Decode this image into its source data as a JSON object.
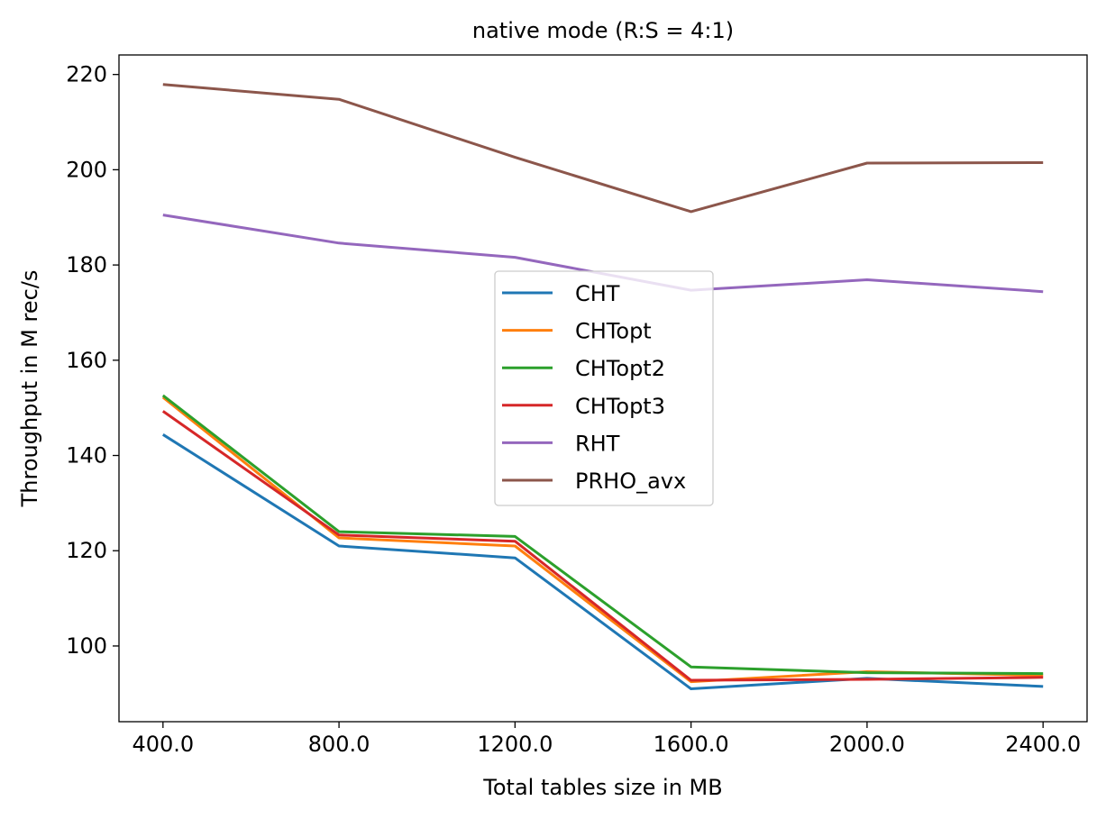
{
  "chart_data": {
    "type": "line",
    "title": "native mode (R:S = 4:1)",
    "xlabel": "Total tables size in MB",
    "ylabel": "Throughput in M rec/s",
    "x": [
      400.0,
      800.0,
      1200.0,
      1600.0,
      2000.0,
      2400.0
    ],
    "x_tick_labels": [
      "400.0",
      "800.0",
      "1200.0",
      "1600.0",
      "2000.0",
      "2400.0"
    ],
    "xlim": [
      300,
      2500
    ],
    "ylim": [
      84.1,
      224.1
    ],
    "y_ticks": [
      100,
      120,
      140,
      160,
      180,
      200,
      220
    ],
    "grid": false,
    "legend_position": "center",
    "series": [
      {
        "name": "CHT",
        "color": "#1f77b4",
        "values": [
          144.4,
          121.0,
          118.5,
          91.0,
          93.2,
          91.5
        ]
      },
      {
        "name": "CHTopt",
        "color": "#ff7f0e",
        "values": [
          152.2,
          122.7,
          121.0,
          92.5,
          94.6,
          93.8
        ]
      },
      {
        "name": "CHTopt2",
        "color": "#2ca02c",
        "values": [
          152.6,
          124.0,
          123.0,
          95.6,
          94.4,
          94.2
        ]
      },
      {
        "name": "CHTopt3",
        "color": "#d62728",
        "values": [
          149.3,
          123.3,
          122.0,
          92.8,
          93.0,
          93.4
        ]
      },
      {
        "name": "RHT",
        "color": "#9467bd",
        "values": [
          190.5,
          184.6,
          181.6,
          174.7,
          176.9,
          174.4
        ]
      },
      {
        "name": "PRHO_avx",
        "color": "#8c564b",
        "values": [
          217.9,
          214.8,
          202.6,
          191.2,
          201.4,
          201.5
        ]
      }
    ]
  }
}
